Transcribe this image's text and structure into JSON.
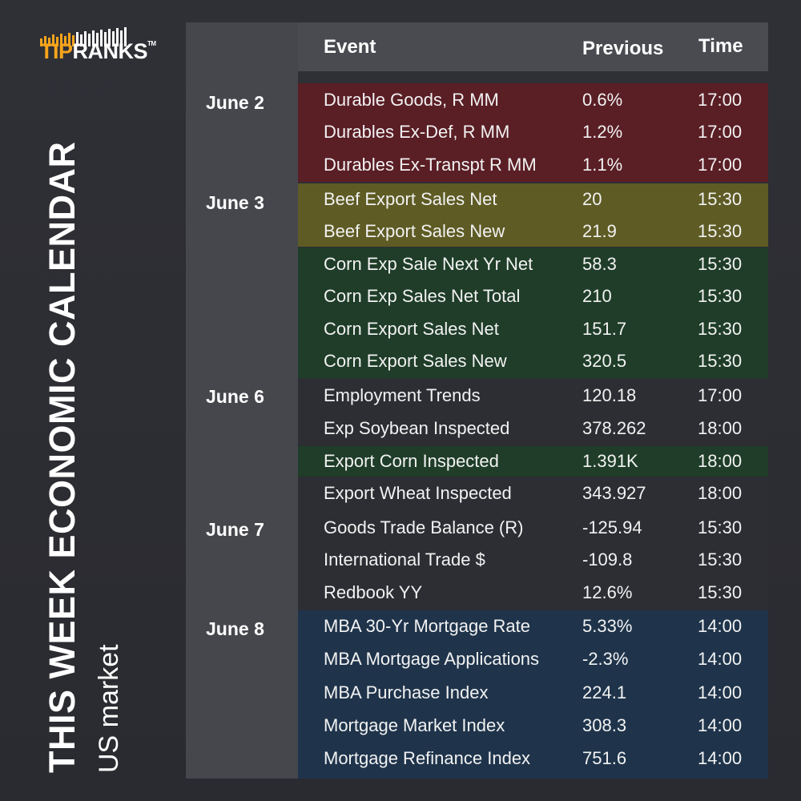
{
  "brand": {
    "tip": "TIP",
    "ranks": "RANKS",
    "tm": "TM",
    "accent": "#f6a41c"
  },
  "title": {
    "main": "THIS WEEK ECONOMIC CALENDAR",
    "sub": "US market"
  },
  "table": {
    "headers": {
      "event": "Event",
      "previous": "Previous",
      "time": "Time"
    },
    "dates": [
      "June 2",
      "June 3",
      "June 6",
      "June 7",
      "June 8"
    ],
    "rows": [
      {
        "event": "Durable Goods, R MM",
        "previous": "0.6%",
        "time": "17:00"
      },
      {
        "event": "Durables Ex-Def, R MM",
        "previous": "1.2%",
        "time": "17:00"
      },
      {
        "event": "Durables Ex-Transpt R MM",
        "previous": "1.1%",
        "time": "17:00"
      },
      {
        "event": "Beef Export Sales Net",
        "previous": "20",
        "time": "15:30"
      },
      {
        "event": "Beef Export Sales New",
        "previous": "21.9",
        "time": "15:30"
      },
      {
        "event": "Corn Exp Sale Next Yr Net",
        "previous": "58.3",
        "time": "15:30"
      },
      {
        "event": "Corn Exp Sales Net Total",
        "previous": "210",
        "time": "15:30"
      },
      {
        "event": "Corn Export Sales Net",
        "previous": "151.7",
        "time": "15:30"
      },
      {
        "event": "Corn Export Sales New",
        "previous": "320.5",
        "time": "15:30"
      },
      {
        "event": "Employment Trends",
        "previous": "120.18",
        "time": "17:00"
      },
      {
        "event": "Exp Soybean Inspected",
        "previous": "378.262",
        "time": "18:00"
      },
      {
        "event": "Export Corn Inspected",
        "previous": "1.391K",
        "time": "18:00"
      },
      {
        "event": "Export Wheat Inspected",
        "previous": "343.927",
        "time": "18:00"
      },
      {
        "event": "Goods Trade Balance (R)",
        "previous": "-125.94",
        "time": "15:30"
      },
      {
        "event": "International Trade $",
        "previous": "-109.8",
        "time": "15:30"
      },
      {
        "event": "Redbook YY",
        "previous": "12.6%",
        "time": "15:30"
      },
      {
        "event": "MBA 30-Yr Mortgage Rate",
        "previous": "5.33%",
        "time": "14:00"
      },
      {
        "event": "MBA Mortgage Applications",
        "previous": "-2.3%",
        "time": "14:00"
      },
      {
        "event": "MBA Purchase Index",
        "previous": "224.1",
        "time": "14:00"
      },
      {
        "event": "Mortgage Market Index",
        "previous": "308.3",
        "time": "14:00"
      },
      {
        "event": "Mortgage Refinance Index",
        "previous": "751.6",
        "time": "14:00"
      }
    ]
  }
}
